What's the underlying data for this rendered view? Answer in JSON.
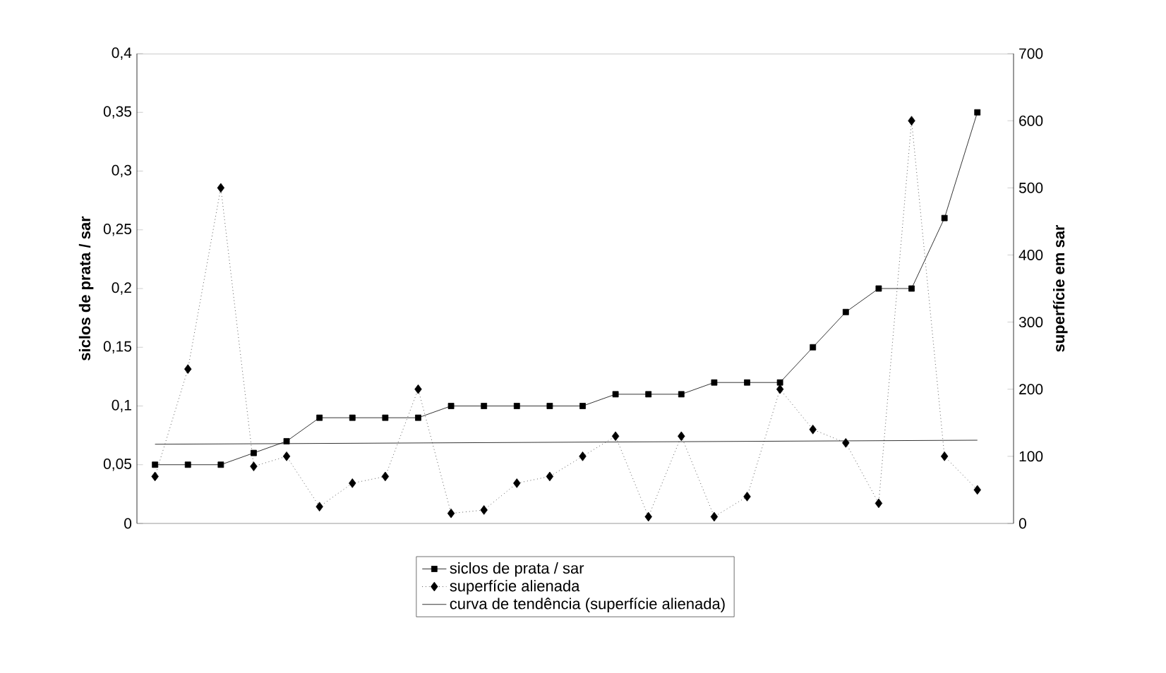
{
  "chart_data": {
    "type": "line",
    "ylabel": "siclos de prata / sar",
    "y2label": "superfície em sar",
    "categories": [
      null,
      null,
      null,
      null,
      null,
      null,
      null,
      null,
      null,
      null,
      null,
      null,
      null,
      null,
      null,
      null,
      null,
      null,
      null,
      null,
      null,
      null,
      null,
      null,
      null,
      null
    ],
    "series": [
      {
        "name": "siclos de prata / sar",
        "color": "#000000",
        "marker": "square",
        "line_style": "solid",
        "values": [
          0.05,
          0.05,
          0.05,
          0.06,
          0.07,
          0.09,
          0.09,
          0.09,
          0.09,
          0.1,
          0.1,
          0.1,
          0.1,
          0.1,
          0.11,
          0.11,
          0.11,
          0.12,
          0.12,
          0.12,
          0.15,
          0.18,
          0.2,
          0.2,
          0.26,
          0.35
        ]
      },
      {
        "name": "superfície alienada",
        "color": "#000000",
        "marker": "diamond",
        "line_style": "dotted",
        "axis": "y2",
        "values": [
          70,
          230,
          500,
          85,
          100,
          25,
          60,
          70,
          200,
          15,
          20,
          60,
          70,
          100,
          130,
          10,
          130,
          10,
          40,
          200,
          140,
          120,
          30,
          600,
          100,
          50
        ]
      },
      {
        "name": "curva de tendência (superfície alienada)",
        "color": "#000000",
        "marker": "none",
        "line_style": "solid",
        "axis": "y2",
        "values": [
          118,
          null,
          null,
          null,
          null,
          null,
          null,
          null,
          null,
          null,
          null,
          null,
          null,
          null,
          null,
          null,
          null,
          null,
          null,
          null,
          null,
          null,
          null,
          null,
          null,
          124
        ]
      }
    ],
    "ylim": [
      0,
      0.4
    ],
    "yticks": [
      {
        "value": 0,
        "label": "0"
      },
      {
        "value": 0.05,
        "label": "0,05"
      },
      {
        "value": 0.1,
        "label": "0,1"
      },
      {
        "value": 0.15,
        "label": "0,15"
      },
      {
        "value": 0.2,
        "label": "0,2"
      },
      {
        "value": 0.25,
        "label": "0,25"
      },
      {
        "value": 0.3,
        "label": "0,3"
      },
      {
        "value": 0.35,
        "label": "0,35"
      },
      {
        "value": 0.4,
        "label": "0,4"
      }
    ],
    "y2lim": [
      0,
      700
    ],
    "y2ticks": [
      0,
      100,
      200,
      300,
      400,
      500,
      600,
      700
    ],
    "tick_labels": "y",
    "grid": false,
    "legend": "bottom"
  }
}
